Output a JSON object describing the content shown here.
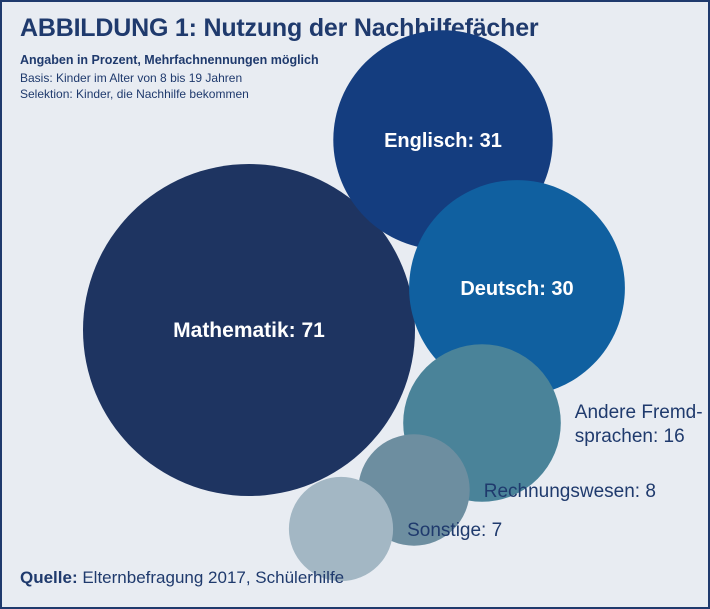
{
  "header": {
    "title": "ABBILDUNG 1: Nutzung der Nachhilfefächer",
    "subtitle": "Angaben in Prozent, Mehrfachnennungen möglich",
    "basis": "Basis: Kinder im Alter von 8 bis 19 Jahren",
    "selektion": "Selektion: Kinder, die Nachhilfe bekommen"
  },
  "source": {
    "label": "Quelle:",
    "text": " Elternbefragung 2017, Schülerhilfe"
  },
  "chart_data": {
    "type": "bubble",
    "title": "ABBILDUNG 1: Nutzung der Nachhilfefächer",
    "unit": "Prozent",
    "series": [
      {
        "name": "Mathematik",
        "value": 71,
        "label": [
          "Mathematik: 71"
        ],
        "label_position": "inside",
        "color": "#1e3461"
      },
      {
        "name": "Englisch",
        "value": 31,
        "label": [
          "Englisch: 31"
        ],
        "label_position": "inside",
        "color": "#143d7f"
      },
      {
        "name": "Deutsch",
        "value": 30,
        "label": [
          "Deutsch: 30"
        ],
        "label_position": "inside",
        "color": "#1060a0"
      },
      {
        "name": "Andere Fremdsprachen",
        "value": 16,
        "label": [
          "Andere Fremd-",
          "sprachen: 16"
        ],
        "label_position": "right",
        "color": "#4a8399"
      },
      {
        "name": "Rechnungswesen",
        "value": 8,
        "label": [
          "Rechnungswesen: 8"
        ],
        "label_position": "right",
        "color": "#6d8ea0"
      },
      {
        "name": "Sonstige",
        "value": 7,
        "label": [
          "Sonstige: 7"
        ],
        "label_position": "right",
        "color": "#a3b7c4"
      }
    ]
  }
}
